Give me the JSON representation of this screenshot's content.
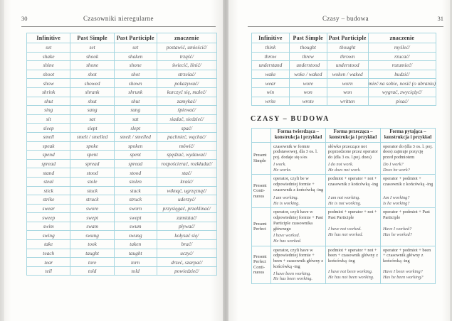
{
  "colors": {
    "table_border": "#a5d6e0",
    "rule": "#8a8a88",
    "text": "#3f3f3f"
  },
  "left_page": {
    "page_number": "30",
    "running_head": "Czasowniki nieregularne",
    "table": {
      "headers": [
        "Infinitive",
        "Past Simple",
        "Past Participle",
        "znaczenie"
      ],
      "rows": [
        [
          "set",
          "set",
          "set",
          "postawić, umieścić/"
        ],
        [
          "shake",
          "shook",
          "shaken",
          "trząść/"
        ],
        [
          "shine",
          "shone",
          "shone",
          "świecić, lśnić/"
        ],
        [
          "shoot",
          "shot",
          "shot",
          "strzelać/"
        ],
        [
          "show",
          "showed",
          "shown",
          "pokazywać/"
        ],
        [
          "shrink",
          "shrank",
          "shrunk",
          "kurczyć się, maleć/"
        ],
        [
          "shut",
          "shut",
          "shut",
          "zamykać/"
        ],
        [
          "sing",
          "sang",
          "sung",
          "śpiewać/"
        ],
        [
          "sit",
          "sat",
          "sat",
          "siadać, siedzieć/"
        ],
        [
          "sleep",
          "slept",
          "slept",
          "spać/"
        ],
        [
          "smell",
          "smelt / smelled",
          "smelt / smelled",
          "pachnieć, wąchać/"
        ],
        [
          "speak",
          "spoke",
          "spoken",
          "mówić/"
        ],
        [
          "spend",
          "spent",
          "spent",
          "spędzać, wydawać/"
        ],
        [
          "spread",
          "spread",
          "spread",
          "rozpościerać, rozkładać/"
        ],
        [
          "stand",
          "stood",
          "stood",
          "stać/"
        ],
        [
          "steal",
          "stole",
          "stolen",
          "kraść/"
        ],
        [
          "stick",
          "stuck",
          "stuck",
          "wtknąć, ugrzęznąć/"
        ],
        [
          "strike",
          "struck",
          "struck",
          "uderzyć/"
        ],
        [
          "swear",
          "swore",
          "sworn",
          "przysięgać, przeklinać/"
        ],
        [
          "sweep",
          "swept",
          "swept",
          "zamiatać/"
        ],
        [
          "swim",
          "swam",
          "swum",
          "pływać/"
        ],
        [
          "swing",
          "swung",
          "swung",
          "kołysać się/"
        ],
        [
          "take",
          "took",
          "taken",
          "brać/"
        ],
        [
          "teach",
          "taught",
          "taught",
          "uczyć/"
        ],
        [
          "tear",
          "tore",
          "torn",
          "drzeć, szarpać/"
        ],
        [
          "tell",
          "told",
          "told",
          "powiedzieć/"
        ]
      ]
    }
  },
  "right_page": {
    "page_number": "31",
    "running_head": "Czasy – budowa",
    "verbs_table": {
      "headers": [
        "Infinitive",
        "Past Simple",
        "Past Participle",
        "znaczenie"
      ],
      "rows": [
        [
          "think",
          "thought",
          "thought",
          "myśleć/"
        ],
        [
          "throw",
          "threw",
          "thrown",
          "rzucać/"
        ],
        [
          "understand",
          "understood",
          "understood",
          "rozumieć/"
        ],
        [
          "wake",
          "woke / waked",
          "woken / waked",
          "budzić/"
        ],
        [
          "wear",
          "wore",
          "worn",
          "mieć na sobie, nosić (o ubraniu)"
        ],
        [
          "win",
          "won",
          "won",
          "wygrać, zwyciężyć/"
        ],
        [
          "write",
          "wrote",
          "written",
          "pisać/"
        ]
      ]
    },
    "section_title": "CZASY – BUDOWA",
    "tenses_table": {
      "headers": [
        "",
        "Forma twierdząca – konstrukcja i przykład",
        "Forma przecząca – konstrukcja i przykład",
        "Forma pytająca – konstrukcja i przykład"
      ],
      "rows": [
        {
          "label_lines": [
            "Present",
            "Simple"
          ],
          "affirmative": {
            "rule": "czasownik w formie podstawowej, dla 3 os. l. poj. dodaje się s/es",
            "examples": [
              "I work.",
              "He works."
            ]
          },
          "negative": {
            "rule": "słówko przeczące not poprzedzone przez operator do (dla 3 os. l.poj. does)",
            "examples": [
              "I do not work.",
              "He does not work."
            ]
          },
          "interrogative": {
            "rule": "operator do (dla 3 os. l. poj. does) zajmuje pozycję przed podmiotem",
            "examples": [
              "Do I work?",
              "Does he work?"
            ]
          }
        },
        {
          "label_lines": [
            "Present",
            "Conti-",
            "nuous"
          ],
          "affirmative": {
            "rule": "operator, czyli be w odpowiedniej formie + czasownik z końcówką -ing",
            "examples": [
              "I am working.",
              "He is working."
            ]
          },
          "negative": {
            "rule": "podmiot + operator + not + czasownik z końcówką -ing",
            "examples": [
              "I am not working.",
              "He is not working."
            ]
          },
          "interrogative": {
            "rule": "operator + podmiot + czasownik z końcówką -ing",
            "examples": [
              "Am I working?",
              "Is he working?"
            ]
          }
        },
        {
          "label_lines": [
            "Present",
            "Perfect"
          ],
          "affirmative": {
            "rule": "operator, czyli have w odpowiedniej formie + Past Participle czasownika głównego",
            "examples": [
              "I have worked.",
              "He has worked."
            ]
          },
          "negative": {
            "rule": "podmiot + operator + not + Past Participle",
            "examples": [
              "I have not worked.",
              "He has not worked."
            ]
          },
          "interrogative": {
            "rule": "operator + podmiot + Past Participle",
            "examples": [
              "Have I worked?",
              "Has he worked?"
            ]
          }
        },
        {
          "label_lines": [
            "Present",
            "Perfect",
            "Conti-",
            "nuous"
          ],
          "affirmative": {
            "rule": "operator, czyli have w odpowiedniej formie + been + czasownik główny z końcówką -ing",
            "examples": [
              "I have been working.",
              "He has been working."
            ]
          },
          "negative": {
            "rule": "podmiot + operator + not + been + czasownik główny z końcówką -ing",
            "examples": [
              "I have not been working.",
              "He has not been working."
            ]
          },
          "interrogative": {
            "rule": "operator + podmiot + been + czasownik główny z końcówką -ing",
            "examples": [
              "Have I been working?",
              "Has he been working?"
            ]
          }
        }
      ]
    }
  }
}
